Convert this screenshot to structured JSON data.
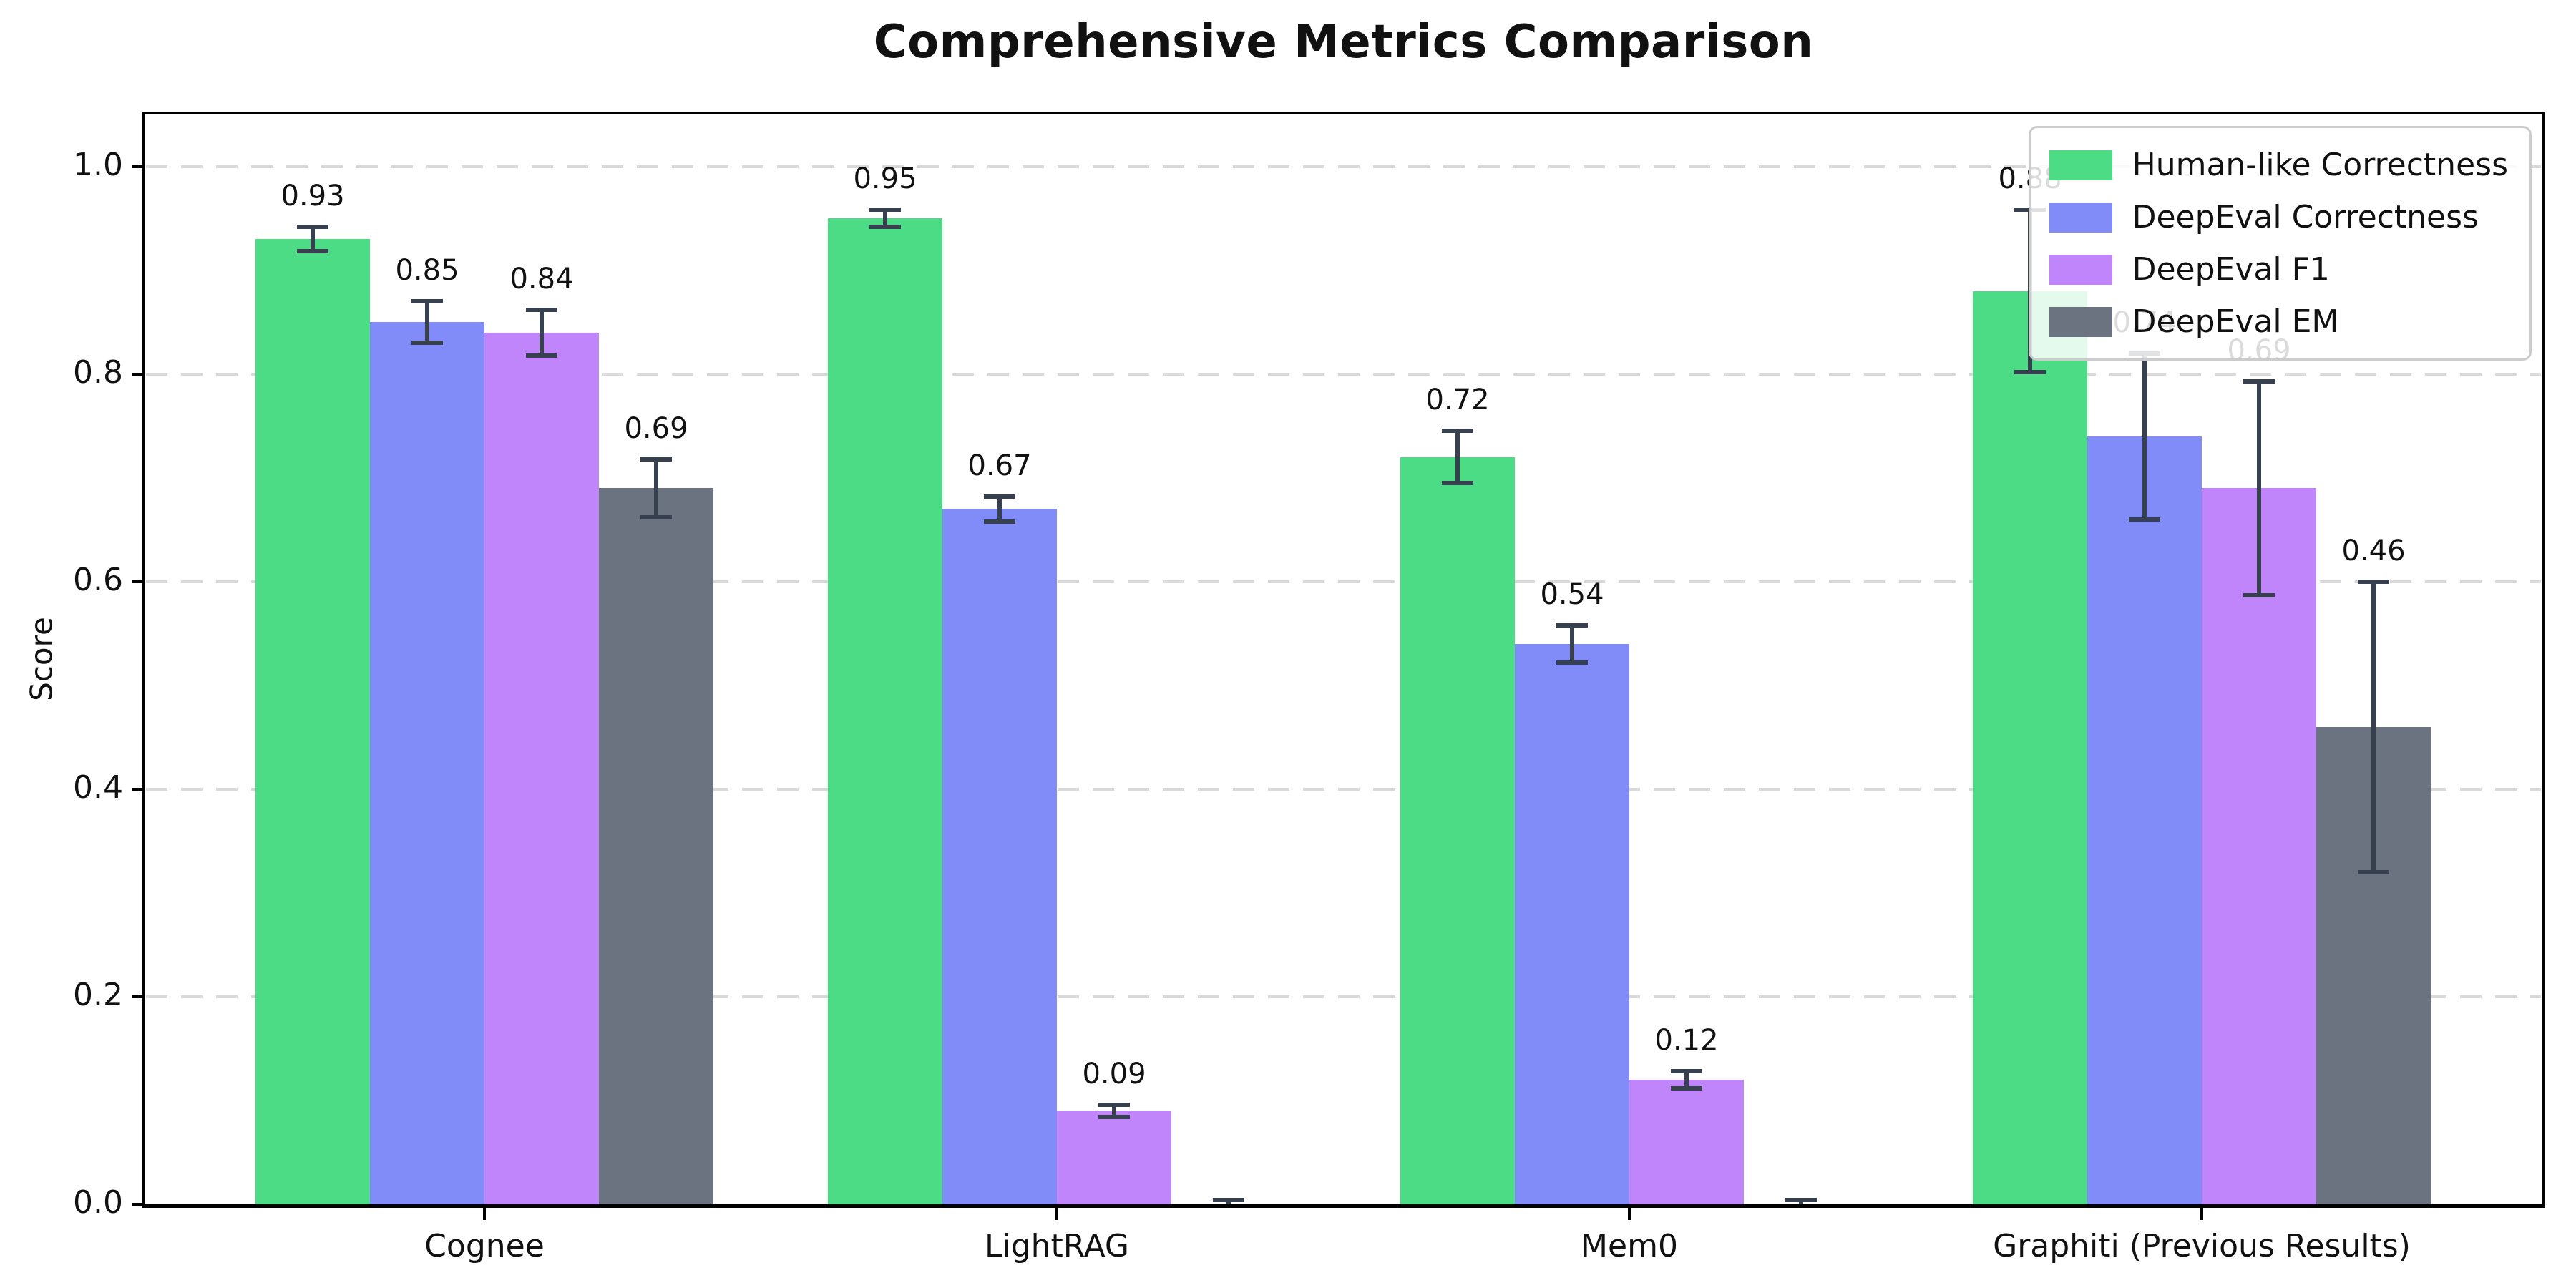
{
  "figure": {
    "title": "Comprehensive Metrics Comparison"
  },
  "chart_data": {
    "type": "bar",
    "title": "Comprehensive Metrics Comparison",
    "xlabel": "",
    "ylabel": "Score",
    "ylim": [
      0,
      1.05
    ],
    "yticks": [
      0,
      0.2,
      0.4,
      0.6,
      0.8,
      1.0
    ],
    "ytick_labels": [
      "0.0",
      "0.2",
      "0.4",
      "0.6",
      "0.8",
      "1.0"
    ],
    "grid": {
      "axis": "y",
      "style": "dashed",
      "color": "#d9d9d9"
    },
    "legend_position": "upper-right",
    "categories": [
      "Cognee",
      "LightRAG",
      "Mem0",
      "Graphiti (Previous Results)"
    ],
    "series": [
      {
        "name": "Human-like Correctness",
        "color": "#4bdc85",
        "values": [
          0.93,
          0.95,
          0.72,
          0.88
        ],
        "errors": [
          0.012,
          0.008,
          0.025,
          0.078
        ],
        "value_labels": [
          "0.93",
          "0.95",
          "0.72",
          "0.88"
        ]
      },
      {
        "name": "DeepEval Correctness",
        "color": "#818cf8",
        "values": [
          0.85,
          0.67,
          0.54,
          0.74
        ],
        "errors": [
          0.02,
          0.012,
          0.018,
          0.08
        ],
        "value_labels": [
          "0.85",
          "0.67",
          "0.54",
          "0.74"
        ]
      },
      {
        "name": "DeepEval F1",
        "color": "#c085fb",
        "values": [
          0.84,
          0.09,
          0.12,
          0.69
        ],
        "errors": [
          0.022,
          0.006,
          0.008,
          0.103
        ],
        "value_labels": [
          "0.84",
          "0.09",
          "0.12",
          "0.69"
        ]
      },
      {
        "name": "DeepEval EM",
        "color": "#6b7280",
        "values": [
          0.69,
          0.0,
          0.0,
          0.46
        ],
        "errors": [
          0.028,
          0.004,
          0.004,
          0.14
        ],
        "value_labels": [
          "0.69",
          "",
          "",
          "0.46"
        ]
      }
    ],
    "error_bar_color": "#36404e",
    "spine_color": "#000000",
    "background_color": "#ffffff"
  }
}
